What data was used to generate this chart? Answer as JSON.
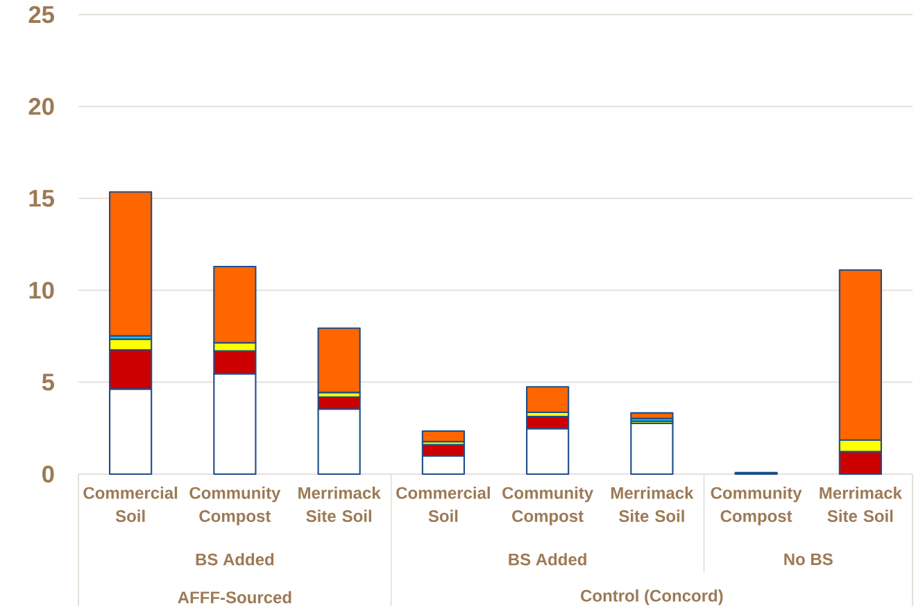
{
  "chart_data": {
    "type": "bar",
    "stacked": true,
    "categories": [
      "Commercial Soil",
      "Community Compost",
      "Merrimack Site Soil",
      "Commercial Soil",
      "Community Compost",
      "Merrimack Site Soil",
      "Community Compost",
      "Merrimack Site Soil"
    ],
    "series": [
      {
        "color": "#ffffff",
        "values": [
          4.63,
          5.46,
          3.54,
          0.99,
          2.48,
          2.76,
          null,
          null
        ]
      },
      {
        "color": "#002f87",
        "values": [
          null,
          null,
          null,
          null,
          null,
          null,
          0.08,
          null
        ]
      },
      {
        "color": "#cc0000",
        "values": [
          2.13,
          1.24,
          0.65,
          0.61,
          0.65,
          null,
          null,
          1.22
        ]
      },
      {
        "color": "#ffff00",
        "values": [
          0.58,
          0.44,
          0.25,
          0.17,
          0.23,
          0.12,
          null,
          0.63
        ]
      },
      {
        "color": "#00ccff",
        "values": [
          0.18,
          null,
          null,
          null,
          null,
          0.15,
          null,
          null
        ]
      },
      {
        "color": "#ff6600",
        "values": [
          7.83,
          4.15,
          3.5,
          0.57,
          1.39,
          0.3,
          null,
          9.25
        ]
      }
    ],
    "ylim": [
      0,
      25
    ],
    "yticks": [
      0,
      5,
      10,
      15,
      20,
      25
    ],
    "grid": "y",
    "annotations": [
      "BS Added",
      "BS Added",
      "No BS",
      "AFFF-Sourced",
      "Control (Concord)"
    ]
  }
}
